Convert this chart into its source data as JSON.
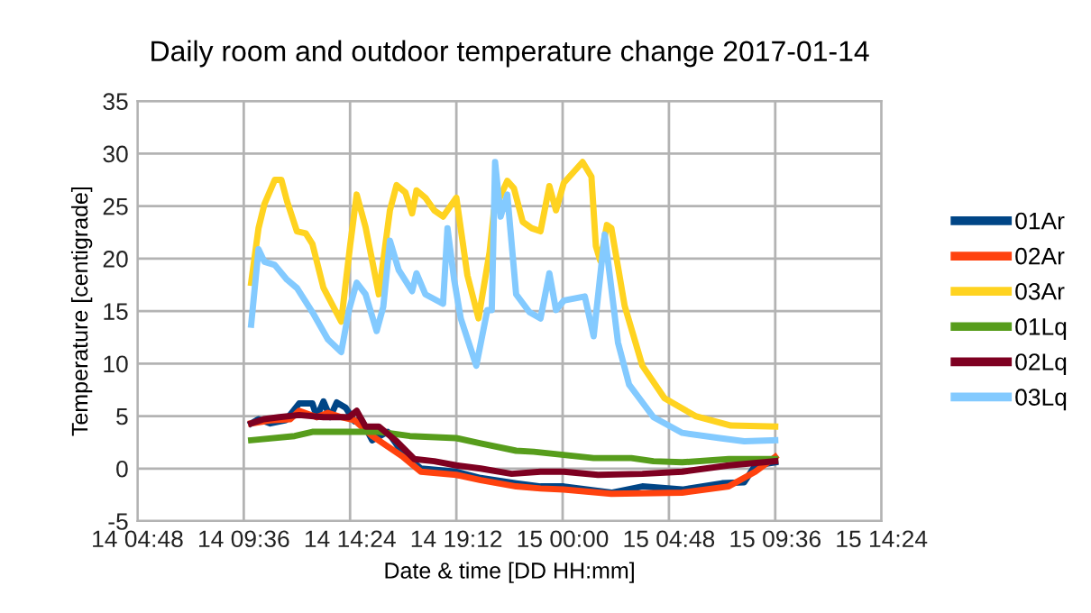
{
  "chart_data": {
    "type": "line",
    "title": "Daily room and outdoor temperature change 2017-01-14",
    "xlabel": "Date & time [DD HH:mm]",
    "ylabel": "Temperature [centigrade]",
    "xlim": [
      "2017-01-14T04:48",
      "2017-01-15T14:24"
    ],
    "xticks": [
      {
        "value": "2017-01-14T04:48",
        "label": "14 04:48"
      },
      {
        "value": "2017-01-14T09:36",
        "label": "14 09:36"
      },
      {
        "value": "2017-01-14T14:24",
        "label": "14 14:24"
      },
      {
        "value": "2017-01-14T19:12",
        "label": "14 19:12"
      },
      {
        "value": "2017-01-15T00:00",
        "label": "15 00:00"
      },
      {
        "value": "2017-01-15T04:48",
        "label": "15 04:48"
      },
      {
        "value": "2017-01-15T09:36",
        "label": "15 09:36"
      },
      {
        "value": "2017-01-15T14:24",
        "label": "15 14:24"
      }
    ],
    "ylim": [
      -5,
      35
    ],
    "yticks": [
      -5,
      0,
      5,
      10,
      15,
      20,
      25,
      30,
      35
    ],
    "grid": true,
    "legend": "right",
    "marker": "none",
    "line_style": "solid",
    "series": [
      {
        "name": "01Ar",
        "color": "#004586",
        "x": [
          "2017-01-14T09:56",
          "2017-01-14T10:16",
          "2017-01-14T10:48",
          "2017-01-14T11:30",
          "2017-01-14T12:06",
          "2017-01-14T12:42",
          "2017-01-14T12:54",
          "2017-01-14T13:12",
          "2017-01-14T13:30",
          "2017-01-14T13:48",
          "2017-01-14T14:12",
          "2017-01-14T14:36",
          "2017-01-14T14:54",
          "2017-01-14T15:24",
          "2017-01-14T16:06",
          "2017-01-14T16:48",
          "2017-01-14T17:36",
          "2017-01-14T19:12",
          "2017-01-14T20:18",
          "2017-01-14T21:54",
          "2017-01-14T23:00",
          "2017-01-15T00:03",
          "2017-01-15T02:12",
          "2017-01-15T03:36",
          "2017-01-15T05:24",
          "2017-01-15T07:12",
          "2017-01-15T08:12",
          "2017-01-15T08:42",
          "2017-01-15T09:36"
        ],
        "values": [
          4.3,
          4.7,
          4.3,
          4.6,
          6.2,
          6.2,
          4.9,
          6.4,
          4.9,
          6.3,
          5.8,
          4.5,
          4.7,
          2.7,
          3.5,
          1.4,
          0.0,
          -0.3,
          -0.9,
          -1.4,
          -1.7,
          -1.7,
          -2.3,
          -1.7,
          -2.0,
          -1.4,
          -1.3,
          0.3,
          0.6
        ]
      },
      {
        "name": "02Ar",
        "color": "#ff420e",
        "x": [
          "2017-01-14T09:56",
          "2017-01-14T10:48",
          "2017-01-14T11:42",
          "2017-01-14T12:06",
          "2017-01-14T12:54",
          "2017-01-14T13:24",
          "2017-01-14T14:00",
          "2017-01-14T14:36",
          "2017-01-14T15:24",
          "2017-01-14T16:48",
          "2017-01-14T17:36",
          "2017-01-14T19:12",
          "2017-01-14T20:18",
          "2017-01-14T21:54",
          "2017-01-14T23:00",
          "2017-01-15T00:03",
          "2017-01-15T02:12",
          "2017-01-15T05:24",
          "2017-01-15T07:30",
          "2017-01-15T08:42",
          "2017-01-15T09:36"
        ],
        "values": [
          4.3,
          4.6,
          4.7,
          5.5,
          4.9,
          5.3,
          4.9,
          4.6,
          3.1,
          1.1,
          -0.3,
          -0.6,
          -1.1,
          -1.7,
          -1.9,
          -2.0,
          -2.4,
          -2.3,
          -1.7,
          -0.3,
          1.1
        ]
      },
      {
        "name": "03Ar",
        "color": "#ffd320",
        "x": [
          "2017-01-14T09:56",
          "2017-01-14T10:16",
          "2017-01-14T10:32",
          "2017-01-14T11:00",
          "2017-01-14T11:18",
          "2017-01-14T11:33",
          "2017-01-14T12:00",
          "2017-01-14T12:24",
          "2017-01-14T12:42",
          "2017-01-14T13:12",
          "2017-01-14T14:00",
          "2017-01-14T14:24",
          "2017-01-14T14:42",
          "2017-01-14T15:06",
          "2017-01-14T15:42",
          "2017-01-14T16:12",
          "2017-01-14T16:30",
          "2017-01-14T16:54",
          "2017-01-14T17:12",
          "2017-01-14T17:24",
          "2017-01-14T17:48",
          "2017-01-14T18:12",
          "2017-01-14T18:36",
          "2017-01-14T19:12",
          "2017-01-14T19:42",
          "2017-01-14T20:12",
          "2017-01-14T20:42",
          "2017-01-14T20:54",
          "2017-01-14T21:30",
          "2017-01-14T21:48",
          "2017-01-14T22:12",
          "2017-01-14T22:36",
          "2017-01-14T23:00",
          "2017-01-14T23:24",
          "2017-01-14T23:42",
          "2017-01-15T00:03",
          "2017-01-15T00:54",
          "2017-01-15T01:18",
          "2017-01-15T01:30",
          "2017-01-15T01:42",
          "2017-01-15T02:00",
          "2017-01-15T02:12",
          "2017-01-15T02:48",
          "2017-01-15T03:36",
          "2017-01-15T04:36",
          "2017-01-15T06:00",
          "2017-01-15T07:36",
          "2017-01-15T09:36"
        ],
        "values": [
          17.7,
          22.9,
          25.2,
          27.5,
          27.5,
          25.5,
          22.6,
          22.4,
          21.4,
          17.2,
          14.0,
          21.2,
          26.1,
          23.0,
          16.6,
          24.6,
          27.0,
          26.3,
          24.3,
          26.5,
          25.8,
          24.6,
          24.0,
          25.8,
          18.4,
          14.3,
          20.6,
          24.6,
          27.4,
          26.7,
          23.5,
          22.9,
          22.6,
          26.9,
          24.6,
          27.2,
          29.2,
          27.8,
          21.2,
          19.8,
          23.2,
          22.9,
          15.5,
          9.8,
          6.7,
          5.0,
          4.1,
          4.0
        ]
      },
      {
        "name": "01Lq",
        "color": "#579d1c",
        "x": [
          "2017-01-14T09:56",
          "2017-01-14T11:54",
          "2017-01-14T12:42",
          "2017-01-14T14:00",
          "2017-01-14T15:42",
          "2017-01-14T17:06",
          "2017-01-14T19:12",
          "2017-01-14T20:18",
          "2017-01-14T21:54",
          "2017-01-14T22:42",
          "2017-01-15T00:03",
          "2017-01-15T01:24",
          "2017-01-15T03:06",
          "2017-01-15T04:06",
          "2017-01-15T05:24",
          "2017-01-15T07:30",
          "2017-01-15T09:36"
        ],
        "values": [
          2.7,
          3.1,
          3.5,
          3.5,
          3.5,
          3.1,
          2.9,
          2.4,
          1.7,
          1.6,
          1.3,
          1.0,
          1.0,
          0.7,
          0.6,
          0.9,
          0.9
        ]
      },
      {
        "name": "02Lq",
        "color": "#7e0021",
        "x": [
          "2017-01-14T09:56",
          "2017-01-14T10:30",
          "2017-01-14T11:12",
          "2017-01-14T12:06",
          "2017-01-14T13:12",
          "2017-01-14T14:21",
          "2017-01-14T14:42",
          "2017-01-14T15:06",
          "2017-01-14T15:42",
          "2017-01-14T16:30",
          "2017-01-14T17:18",
          "2017-01-14T18:12",
          "2017-01-14T19:12",
          "2017-01-14T20:18",
          "2017-01-14T21:42",
          "2017-01-14T23:00",
          "2017-01-15T00:03",
          "2017-01-15T01:36",
          "2017-01-15T03:36",
          "2017-01-15T05:24",
          "2017-01-15T07:30",
          "2017-01-15T09:36"
        ],
        "values": [
          4.3,
          4.7,
          4.9,
          5.1,
          4.9,
          4.9,
          5.5,
          4.0,
          4.0,
          2.6,
          0.9,
          0.7,
          0.3,
          0.0,
          -0.5,
          -0.3,
          -0.3,
          -0.6,
          -0.5,
          -0.3,
          0.3,
          0.7
        ]
      },
      {
        "name": "03Lq",
        "color": "#83caff",
        "x": [
          "2017-01-14T09:56",
          "2017-01-14T10:16",
          "2017-01-14T10:32",
          "2017-01-14T11:00",
          "2017-01-14T11:33",
          "2017-01-14T12:00",
          "2017-01-14T12:42",
          "2017-01-14T13:24",
          "2017-01-14T14:00",
          "2017-01-14T14:21",
          "2017-01-14T14:42",
          "2017-01-14T15:06",
          "2017-01-14T15:36",
          "2017-01-14T15:54",
          "2017-01-14T16:12",
          "2017-01-14T16:36",
          "2017-01-14T17:12",
          "2017-01-14T17:24",
          "2017-01-14T17:48",
          "2017-01-14T18:36",
          "2017-01-14T18:48",
          "2017-01-14T19:06",
          "2017-01-14T19:24",
          "2017-01-14T20:06",
          "2017-01-14T20:36",
          "2017-01-14T20:48",
          "2017-01-14T20:57",
          "2017-01-14T21:12",
          "2017-01-14T21:30",
          "2017-01-14T21:54",
          "2017-01-14T22:30",
          "2017-01-14T23:00",
          "2017-01-14T23:24",
          "2017-01-14T23:42",
          "2017-01-15T00:03",
          "2017-01-15T01:00",
          "2017-01-15T01:24",
          "2017-01-15T01:54",
          "2017-01-15T02:30",
          "2017-01-15T03:00",
          "2017-01-15T04:06",
          "2017-01-15T05:24",
          "2017-01-15T07:06",
          "2017-01-15T08:12",
          "2017-01-15T09:36"
        ],
        "values": [
          13.7,
          20.9,
          19.7,
          19.4,
          18.0,
          17.2,
          14.9,
          12.3,
          11.1,
          15.1,
          17.7,
          16.6,
          13.1,
          15.4,
          21.7,
          18.9,
          16.9,
          18.6,
          16.6,
          15.7,
          22.9,
          18.0,
          14.3,
          9.8,
          15.1,
          15.1,
          29.2,
          24.0,
          26.1,
          16.6,
          14.9,
          14.3,
          18.6,
          15.1,
          16.0,
          16.4,
          12.6,
          22.3,
          12.0,
          8.0,
          4.9,
          3.4,
          2.9,
          2.6,
          2.7
        ]
      }
    ]
  }
}
